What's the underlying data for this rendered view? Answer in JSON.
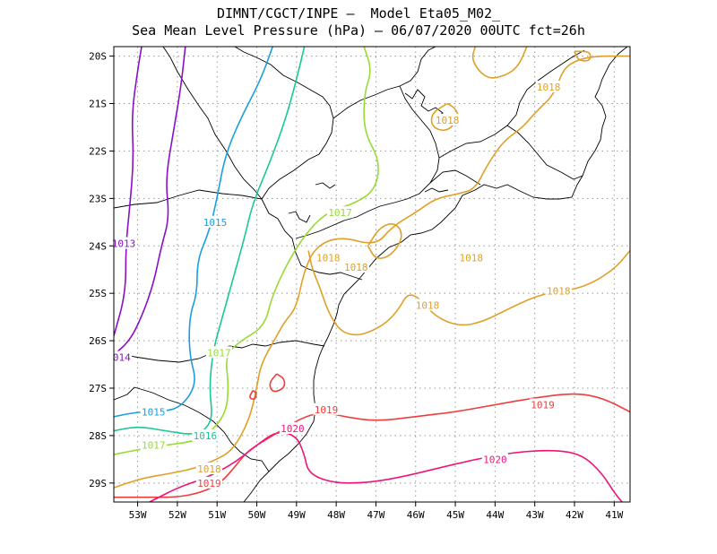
{
  "chart_data": {
    "type": "contour",
    "title_lines": [
      "DIMNT/CGCT/INPE –  Model Eta05_M02_",
      "Sea Mean Level Pressure (hPa) – 06/07/2020 00UTC fct=26h"
    ],
    "xlabel": "",
    "ylabel": "",
    "x_ticks": [
      "53W",
      "52W",
      "51W",
      "50W",
      "49W",
      "48W",
      "47W",
      "46W",
      "45W",
      "44W",
      "43W",
      "42W",
      "41W"
    ],
    "y_ticks": [
      "20S",
      "21S",
      "22S",
      "23S",
      "24S",
      "25S",
      "26S",
      "27S",
      "28S",
      "29S"
    ],
    "xlim": [
      -53.6,
      -40.6
    ],
    "ylim": [
      -29.4,
      -19.8
    ],
    "grid": "dotted",
    "contour_interval_hPa": 1,
    "colors": {
      "1013": "#8a10c8",
      "1014": "#8a10c8",
      "1015": "#1a9ee0",
      "1016": "#18c896",
      "1017": "#96dc32",
      "1018": "#e0a028",
      "1019": "#f03c3c",
      "1020": "#f01478",
      "coastline": "#000000"
    },
    "contours": [
      {
        "level": 1013,
        "label": "1013",
        "color": "#8a10c8",
        "points": [
          [
            -52.9,
            -19.8
          ],
          [
            -53.0,
            -20.3
          ],
          [
            -53.15,
            -21.2
          ],
          [
            -53.1,
            -22.2
          ],
          [
            -53.2,
            -23.2
          ],
          [
            -53.3,
            -24.0
          ],
          [
            -53.3,
            -25.0
          ],
          [
            -53.6,
            -25.9
          ]
        ]
      },
      {
        "level": 1014,
        "label": "014",
        "color": "#8a10c8",
        "points": [
          [
            -51.8,
            -19.8
          ],
          [
            -51.9,
            -20.6
          ],
          [
            -52.1,
            -21.6
          ],
          [
            -52.3,
            -22.6
          ],
          [
            -52.2,
            -23.4
          ],
          [
            -52.4,
            -24.0
          ],
          [
            -52.6,
            -24.8
          ],
          [
            -52.9,
            -25.5
          ],
          [
            -53.2,
            -26.0
          ],
          [
            -53.6,
            -26.3
          ]
        ]
      },
      {
        "level": 1015,
        "label": "1015",
        "color": "#1a9ee0",
        "points": [
          [
            -49.6,
            -19.8
          ],
          [
            -49.9,
            -20.5
          ],
          [
            -50.4,
            -21.3
          ],
          [
            -50.8,
            -22.1
          ],
          [
            -51.0,
            -23.0
          ],
          [
            -51.2,
            -23.7
          ],
          [
            -51.5,
            -24.3
          ],
          [
            -51.5,
            -25.0
          ],
          [
            -51.7,
            -25.5
          ],
          [
            -51.7,
            -26.3
          ],
          [
            -51.5,
            -26.9
          ],
          [
            -51.9,
            -27.4
          ],
          [
            -52.4,
            -27.5
          ],
          [
            -53.0,
            -27.5
          ],
          [
            -53.6,
            -27.6
          ]
        ]
      },
      {
        "level": 1016,
        "label": "1016",
        "color": "#18c896",
        "points": [
          [
            -48.8,
            -19.8
          ],
          [
            -49.0,
            -20.5
          ],
          [
            -49.3,
            -21.4
          ],
          [
            -49.7,
            -22.3
          ],
          [
            -50.1,
            -23.1
          ],
          [
            -50.3,
            -23.8
          ],
          [
            -50.6,
            -24.7
          ],
          [
            -50.9,
            -25.6
          ],
          [
            -51.1,
            -26.2
          ],
          [
            -51.2,
            -27.0
          ],
          [
            -51.1,
            -27.7
          ],
          [
            -51.5,
            -28.0
          ],
          [
            -52.3,
            -27.9
          ],
          [
            -53.0,
            -27.8
          ],
          [
            -53.6,
            -27.9
          ]
        ]
      },
      {
        "level": 1017,
        "label": "1017",
        "color": "#96dc32",
        "points": [
          [
            -47.3,
            -19.8
          ],
          [
            -47.1,
            -20.3
          ],
          [
            -47.3,
            -20.8
          ],
          [
            -47.3,
            -21.6
          ],
          [
            -46.9,
            -22.2
          ],
          [
            -47.0,
            -22.8
          ],
          [
            -47.5,
            -23.1
          ],
          [
            -48.3,
            -23.3
          ],
          [
            -49.0,
            -24.0
          ],
          [
            -49.6,
            -25.0
          ],
          [
            -49.8,
            -25.7
          ],
          [
            -50.4,
            -26.0
          ],
          [
            -50.8,
            -26.3
          ],
          [
            -50.7,
            -27.0
          ],
          [
            -50.8,
            -27.6
          ],
          [
            -51.4,
            -28.1
          ],
          [
            -52.3,
            -28.2
          ],
          [
            -53.0,
            -28.3
          ],
          [
            -53.6,
            -28.4
          ]
        ]
      },
      {
        "level": 1018,
        "label": "1018",
        "color": "#e0a028",
        "points": [
          [
            -53.6,
            -29.1
          ],
          [
            -52.9,
            -28.9
          ],
          [
            -52.2,
            -28.8
          ],
          [
            -51.6,
            -28.7
          ],
          [
            -51.0,
            -28.5
          ],
          [
            -50.6,
            -28.3
          ],
          [
            -50.2,
            -27.7
          ],
          [
            -50.0,
            -27.0
          ],
          [
            -49.9,
            -26.5
          ],
          [
            -49.5,
            -25.9
          ],
          [
            -49.3,
            -25.6
          ],
          [
            -49.0,
            -25.3
          ],
          [
            -48.8,
            -24.5
          ],
          [
            -48.5,
            -24.0
          ],
          [
            -47.9,
            -23.8
          ],
          [
            -47.0,
            -24.0
          ],
          [
            -46.6,
            -23.6
          ],
          [
            -46.0,
            -23.3
          ],
          [
            -45.5,
            -23.0
          ],
          [
            -44.9,
            -22.9
          ],
          [
            -44.5,
            -22.8
          ],
          [
            -44.2,
            -22.3
          ],
          [
            -43.8,
            -21.8
          ],
          [
            -43.3,
            -21.5
          ],
          [
            -43.0,
            -21.2
          ],
          [
            -42.5,
            -20.8
          ],
          [
            -42.3,
            -20.3
          ],
          [
            -42.0,
            -20.1
          ],
          [
            -41.5,
            -20.0
          ],
          [
            -40.6,
            -20.0
          ]
        ]
      },
      {
        "level": 1018,
        "label": "1018",
        "color": "#e0a028",
        "points": [
          [
            -40.6,
            -24.1
          ],
          [
            -41.0,
            -24.5
          ],
          [
            -41.8,
            -24.9
          ],
          [
            -42.8,
            -25.0
          ],
          [
            -43.6,
            -25.3
          ],
          [
            -44.3,
            -25.6
          ],
          [
            -44.9,
            -25.7
          ],
          [
            -45.5,
            -25.5
          ],
          [
            -45.9,
            -25.1
          ],
          [
            -46.2,
            -25.0
          ],
          [
            -46.4,
            -25.3
          ],
          [
            -46.7,
            -25.6
          ],
          [
            -47.1,
            -25.8
          ],
          [
            -47.5,
            -25.9
          ],
          [
            -47.9,
            -25.8
          ],
          [
            -48.2,
            -25.4
          ],
          [
            -48.4,
            -24.9
          ],
          [
            -48.6,
            -24.5
          ],
          [
            -48.7,
            -24.1
          ]
        ]
      },
      {
        "level": 1018,
        "label": "1018",
        "color": "#e0a028",
        "points": [
          [
            -47.2,
            -24.0
          ],
          [
            -46.9,
            -23.6
          ],
          [
            -46.5,
            -23.5
          ],
          [
            -46.3,
            -23.8
          ],
          [
            -46.6,
            -24.2
          ],
          [
            -47.0,
            -24.3
          ],
          [
            -47.2,
            -24.0
          ]
        ]
      },
      {
        "level": 1018,
        "label": "",
        "color": "#e0a028",
        "points": [
          [
            -44.5,
            -19.8
          ],
          [
            -44.6,
            -20.1
          ],
          [
            -44.2,
            -20.5
          ],
          [
            -43.7,
            -20.4
          ],
          [
            -43.4,
            -20.2
          ],
          [
            -43.2,
            -19.8
          ]
        ]
      },
      {
        "level": 1018,
        "label": "1018",
        "color": "#e0a028",
        "points": [
          [
            -45.2,
            -21.0
          ],
          [
            -45.6,
            -21.2
          ],
          [
            -45.6,
            -21.5
          ],
          [
            -45.2,
            -21.6
          ],
          [
            -44.9,
            -21.3
          ],
          [
            -45.0,
            -21.1
          ],
          [
            -45.2,
            -21.0
          ]
        ]
      },
      {
        "level": 1018,
        "label": "",
        "color": "#e0a028",
        "points": [
          [
            -42.0,
            -19.9
          ],
          [
            -41.9,
            -20.1
          ],
          [
            -41.6,
            -20.1
          ],
          [
            -41.6,
            -19.9
          ],
          [
            -42.0,
            -19.9
          ]
        ]
      },
      {
        "level": 1019,
        "label": "1019",
        "color": "#f03c3c",
        "points": [
          [
            -53.6,
            -29.3
          ],
          [
            -52.8,
            -29.3
          ],
          [
            -52.0,
            -29.3
          ],
          [
            -51.4,
            -29.2
          ],
          [
            -50.9,
            -29.0
          ],
          [
            -50.5,
            -28.6
          ],
          [
            -50.2,
            -28.3
          ],
          [
            -49.6,
            -28.0
          ],
          [
            -49.2,
            -27.8
          ],
          [
            -48.8,
            -27.6
          ],
          [
            -48.3,
            -27.5
          ],
          [
            -47.8,
            -27.6
          ],
          [
            -47.0,
            -27.7
          ],
          [
            -46.0,
            -27.6
          ],
          [
            -45.0,
            -27.5
          ],
          [
            -44.0,
            -27.35
          ],
          [
            -43.0,
            -27.2
          ],
          [
            -42.0,
            -27.1
          ],
          [
            -41.3,
            -27.2
          ],
          [
            -40.6,
            -27.5
          ]
        ]
      },
      {
        "level": 1019,
        "label": "",
        "color": "#f03c3c",
        "points": [
          [
            -49.5,
            -26.7
          ],
          [
            -49.7,
            -26.9
          ],
          [
            -49.6,
            -27.1
          ],
          [
            -49.3,
            -27.0
          ],
          [
            -49.3,
            -26.8
          ],
          [
            -49.5,
            -26.7
          ]
        ]
      },
      {
        "level": 1019,
        "label": "",
        "color": "#f03c3c",
        "points": [
          [
            -50.1,
            -27.05
          ],
          [
            -50.2,
            -27.2
          ],
          [
            -50.05,
            -27.25
          ],
          [
            -50.0,
            -27.1
          ],
          [
            -50.1,
            -27.05
          ]
        ]
      },
      {
        "level": 1020,
        "label": "1020",
        "color": "#f01478",
        "points": [
          [
            -52.7,
            -29.4
          ],
          [
            -52.0,
            -29.1
          ],
          [
            -51.3,
            -28.9
          ],
          [
            -50.6,
            -28.6
          ],
          [
            -50.0,
            -28.2
          ],
          [
            -49.5,
            -27.9
          ],
          [
            -49.0,
            -28.0
          ],
          [
            -48.8,
            -28.4
          ],
          [
            -48.7,
            -28.8
          ],
          [
            -48.1,
            -29.0
          ],
          [
            -47.3,
            -29.0
          ],
          [
            -46.5,
            -28.9
          ],
          [
            -45.5,
            -28.7
          ],
          [
            -44.5,
            -28.5
          ],
          [
            -43.5,
            -28.35
          ],
          [
            -42.5,
            -28.3
          ],
          [
            -41.8,
            -28.4
          ],
          [
            -41.3,
            -28.8
          ],
          [
            -41.0,
            -29.2
          ],
          [
            -40.8,
            -29.4
          ]
        ]
      }
    ],
    "labels": [
      {
        "text": "1013",
        "lon": -53.35,
        "lat": -23.95,
        "color": "#8a10c8"
      },
      {
        "text": "014",
        "lon": -53.4,
        "lat": -26.35,
        "color": "#8a10c8"
      },
      {
        "text": "1015",
        "lon": -51.05,
        "lat": -23.5,
        "color": "#1a9ee0"
      },
      {
        "text": "1015",
        "lon": -52.6,
        "lat": -27.5,
        "color": "#1a9ee0"
      },
      {
        "text": "1016",
        "lon": -51.3,
        "lat": -28.0,
        "color": "#18c896"
      },
      {
        "text": "1017",
        "lon": -47.9,
        "lat": -23.3,
        "color": "#96dc32"
      },
      {
        "text": "1017",
        "lon": -50.95,
        "lat": -26.25,
        "color": "#96dc32"
      },
      {
        "text": "1017",
        "lon": -52.6,
        "lat": -28.2,
        "color": "#96dc32"
      },
      {
        "text": "1018",
        "lon": -42.65,
        "lat": -20.65,
        "color": "#e0a028"
      },
      {
        "text": "1018",
        "lon": -45.2,
        "lat": -21.35,
        "color": "#e0a028"
      },
      {
        "text": "1018",
        "lon": -48.2,
        "lat": -24.25,
        "color": "#e0a028"
      },
      {
        "text": "1018",
        "lon": -47.5,
        "lat": -24.45,
        "color": "#e0a028"
      },
      {
        "text": "1018",
        "lon": -44.6,
        "lat": -24.25,
        "color": "#e0a028"
      },
      {
        "text": "1018",
        "lon": -42.4,
        "lat": -24.95,
        "color": "#e0a028"
      },
      {
        "text": "1018",
        "lon": -45.7,
        "lat": -25.25,
        "color": "#e0a028"
      },
      {
        "text": "1018",
        "lon": -51.2,
        "lat": -28.7,
        "color": "#e0a028"
      },
      {
        "text": "1019",
        "lon": -48.25,
        "lat": -27.45,
        "color": "#f03c3c"
      },
      {
        "text": "1019",
        "lon": -42.8,
        "lat": -27.35,
        "color": "#f03c3c"
      },
      {
        "text": "1019",
        "lon": -51.2,
        "lat": -29.0,
        "color": "#f03c3c"
      },
      {
        "text": "1020",
        "lon": -49.1,
        "lat": -27.85,
        "color": "#f01478"
      },
      {
        "text": "1020",
        "lon": -44.0,
        "lat": -28.5,
        "color": "#f01478"
      }
    ]
  }
}
